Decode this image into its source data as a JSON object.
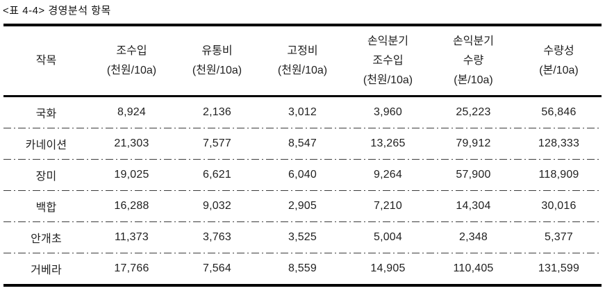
{
  "caption": "<표 4-4> 경영분석 항목",
  "table": {
    "columns": [
      {
        "name": "crop",
        "lines": [
          "작목"
        ]
      },
      {
        "name": "gross-income",
        "lines": [
          "조수입",
          "(천원/10a)"
        ]
      },
      {
        "name": "distribution-cost",
        "lines": [
          "유통비",
          "(천원/10a)"
        ]
      },
      {
        "name": "fixed-cost",
        "lines": [
          "고정비",
          "(천원/10a)"
        ]
      },
      {
        "name": "break-even-gross-income",
        "lines": [
          "손익분기",
          "조수입",
          "(천원/10a)"
        ]
      },
      {
        "name": "break-even-quantity",
        "lines": [
          "손익분기",
          "수량",
          "(본/10a)"
        ]
      },
      {
        "name": "yield",
        "lines": [
          "수량성",
          "(본/10a)"
        ]
      }
    ],
    "rows": [
      {
        "crop": "국화",
        "values": [
          "8,924",
          "2,136",
          "3,012",
          "3,960",
          "25,223",
          "56,846"
        ]
      },
      {
        "crop": "카네이션",
        "values": [
          "21,303",
          "7,577",
          "8,547",
          "13,265",
          "79,912",
          "128,333"
        ]
      },
      {
        "crop": "장미",
        "values": [
          "19,025",
          "6,621",
          "6,040",
          "9,264",
          "57,900",
          "118,909"
        ]
      },
      {
        "crop": "백합",
        "values": [
          "16,288",
          "9,032",
          "2,905",
          "7,210",
          "14,304",
          "30,016"
        ]
      },
      {
        "crop": "안개초",
        "values": [
          "11,373",
          "3,763",
          "3,525",
          "5,004",
          "2,348",
          "5,377"
        ]
      },
      {
        "crop": "거베라",
        "values": [
          "17,766",
          "7,564",
          "8,559",
          "14,905",
          "110,405",
          "131,599"
        ]
      }
    ]
  }
}
